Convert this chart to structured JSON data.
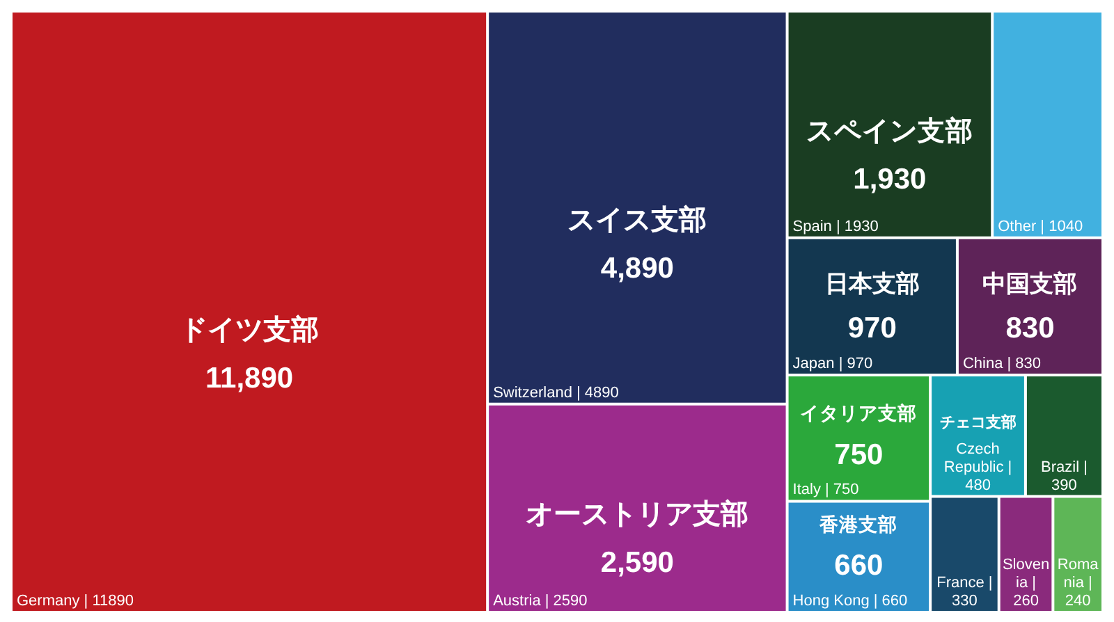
{
  "chart_data": {
    "type": "other",
    "categories": [
      "Germany |",
      "Switzerland |",
      "Austria |",
      "Spain |",
      "Other |",
      "Japan |",
      "China |",
      "Italy |",
      "Hong Kong |",
      "Czech Republic |",
      "Brazil |",
      "France |",
      "Slovenia |",
      "Romania |"
    ],
    "values": [
      11890,
      4890,
      2590,
      1930,
      1040,
      970,
      830,
      750,
      660,
      480,
      390,
      330,
      260,
      240
    ],
    "data_labels": true,
    "colors": [
      "#c01a20",
      "#212d5e",
      "#9c2b8c",
      "#1a3d22",
      "#41b1e0",
      "#133750",
      "#5e2358",
      "#2ba83b",
      "#2a8ec8",
      "#17a1b3",
      "#1b5a2e",
      "#19496a",
      "#8a2a7c",
      "#5eb657"
    ],
    "annotations": [
      {
        "text": "ドイツ支部",
        "x": "Germany |"
      },
      {
        "text": "11,890",
        "x": "Germany |"
      },
      {
        "text": "スイス支部",
        "x": "Switzerland |"
      },
      {
        "text": "4,890",
        "x": "Switzerland |"
      },
      {
        "text": "オーストリア支部",
        "x": "Austria |"
      },
      {
        "text": "2,590",
        "x": "Austria |"
      },
      {
        "text": "スペイン支部",
        "x": "Spain |"
      },
      {
        "text": "1,930",
        "x": "Spain |"
      },
      {
        "text": "日本支部",
        "x": "Japan |"
      },
      {
        "text": "970",
        "x": "Japan |"
      },
      {
        "text": "中国支部",
        "x": "China |"
      },
      {
        "text": "830",
        "x": "China |"
      },
      {
        "text": "イタリア支部",
        "x": "Italy |"
      },
      {
        "text": "750",
        "x": "Italy |"
      },
      {
        "text": "香港支部",
        "x": "Hong Kong |"
      },
      {
        "text": "660",
        "x": "Hong Kong |"
      },
      {
        "text": "チェコ支部",
        "x": "Czech Republic |"
      }
    ]
  }
}
